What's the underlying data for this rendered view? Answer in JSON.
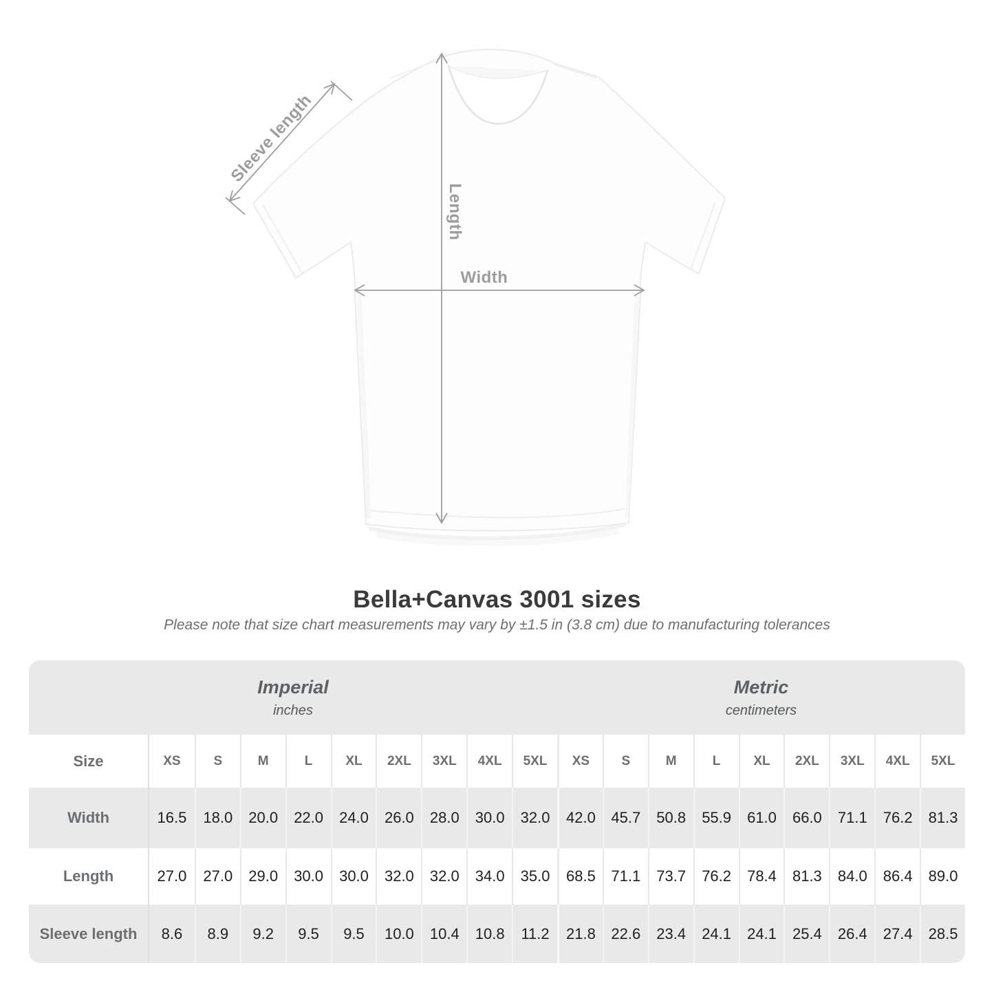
{
  "title": "Bella+Canvas 3001 sizes",
  "subtitle": "Please note that size chart measurements may vary by ±1.5 in (3.8 cm) due to manufacturing tolerances",
  "diagram": {
    "sleeve_label": "Sleeve length",
    "length_label": "Length",
    "width_label": "Width",
    "arrow_color": "#9d9d9d",
    "label_color": "#9c9c9c"
  },
  "table": {
    "size_label": "Size",
    "sizes": [
      "XS",
      "S",
      "M",
      "L",
      "XL",
      "2XL",
      "3XL",
      "4XL",
      "5XL"
    ],
    "groups": [
      {
        "name": "Imperial",
        "unit": "inches"
      },
      {
        "name": "Metric",
        "unit": "centimeters"
      }
    ],
    "rows": [
      {
        "label": "Width",
        "imperial": [
          "16.5",
          "18.0",
          "20.0",
          "22.0",
          "24.0",
          "26.0",
          "28.0",
          "30.0",
          "32.0"
        ],
        "metric": [
          "42.0",
          "45.7",
          "50.8",
          "55.9",
          "61.0",
          "66.0",
          "71.1",
          "76.2",
          "81.3"
        ]
      },
      {
        "label": "Length",
        "imperial": [
          "27.0",
          "27.0",
          "29.0",
          "30.0",
          "30.0",
          "32.0",
          "32.0",
          "34.0",
          "35.0"
        ],
        "metric": [
          "68.5",
          "71.1",
          "73.7",
          "76.2",
          "78.4",
          "81.3",
          "84.0",
          "86.4",
          "89.0"
        ]
      },
      {
        "label": "Sleeve length",
        "imperial": [
          "8.6",
          "8.9",
          "9.2",
          "9.5",
          "9.5",
          "10.0",
          "10.4",
          "10.8",
          "11.2"
        ],
        "metric": [
          "21.8",
          "22.6",
          "23.4",
          "24.1",
          "24.1",
          "25.4",
          "26.4",
          "27.4",
          "28.5"
        ]
      }
    ],
    "colors": {
      "stripe": "#e9e9e9",
      "header_text": "#6b6f72",
      "value_text": "#1f1f1f"
    }
  },
  "chart_data": {
    "type": "table",
    "title": "Bella+Canvas 3001 sizes",
    "note": "Please note that size chart measurements may vary by ±1.5 in (3.8 cm) due to manufacturing tolerances",
    "column_groups": [
      "Imperial (inches)",
      "Metric (centimeters)"
    ],
    "columns": [
      "XS",
      "S",
      "M",
      "L",
      "XL",
      "2XL",
      "3XL",
      "4XL",
      "5XL"
    ],
    "rows": [
      {
        "label": "Width",
        "imperial": [
          16.5,
          18.0,
          20.0,
          22.0,
          24.0,
          26.0,
          28.0,
          30.0,
          32.0
        ],
        "metric": [
          42.0,
          45.7,
          50.8,
          55.9,
          61.0,
          66.0,
          71.1,
          76.2,
          81.3
        ]
      },
      {
        "label": "Length",
        "imperial": [
          27.0,
          27.0,
          29.0,
          30.0,
          30.0,
          32.0,
          32.0,
          34.0,
          35.0
        ],
        "metric": [
          68.5,
          71.1,
          73.7,
          76.2,
          78.4,
          81.3,
          84.0,
          86.4,
          89.0
        ]
      },
      {
        "label": "Sleeve length",
        "imperial": [
          8.6,
          8.9,
          9.2,
          9.5,
          9.5,
          10.0,
          10.4,
          10.8,
          11.2
        ],
        "metric": [
          21.8,
          22.6,
          23.4,
          24.1,
          24.1,
          25.4,
          26.4,
          27.4,
          28.5
        ]
      }
    ]
  }
}
